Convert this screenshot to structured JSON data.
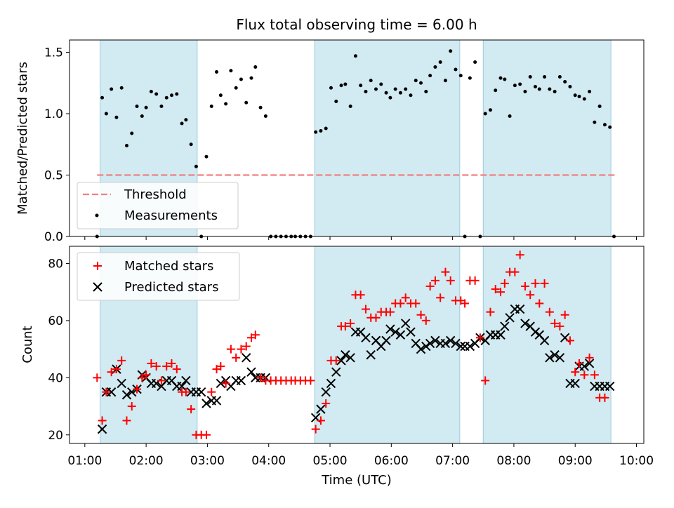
{
  "chart_data": [
    {
      "type": "scatter",
      "title": "Flux total observing time = 6.00 h",
      "xlabel": "",
      "ylabel": "Matched/Predicted stars",
      "ylim": [
        0,
        1.6
      ],
      "yticks": [
        "0.0",
        "0.5",
        "1.0",
        "1.5"
      ],
      "xlim_hours": [
        0.75,
        10.12
      ],
      "shaded_bands_utc": [
        [
          "01:15",
          "02:50"
        ],
        [
          "04:45",
          "07:07"
        ],
        [
          "07:30",
          "09:35"
        ]
      ],
      "band_color": "#add8e6",
      "legend": {
        "location": "lower-left",
        "entries": [
          "Threshold",
          "Measurements"
        ]
      },
      "series": [
        {
          "name": "Threshold",
          "kind": "dashed-line",
          "color": "#f08080",
          "x": [
            "01:12",
            "09:40"
          ],
          "y": [
            0.5,
            0.5
          ]
        },
        {
          "name": "Measurements",
          "kind": "points",
          "color": "#000000",
          "x": [
            "01:12",
            "01:17",
            "01:21",
            "01:26",
            "01:31",
            "01:36",
            "01:41",
            "01:46",
            "01:51",
            "01:56",
            "02:00",
            "02:05",
            "02:10",
            "02:15",
            "02:20",
            "02:25",
            "02:30",
            "02:35",
            "02:39",
            "02:44",
            "02:49",
            "02:54",
            "02:59",
            "03:04",
            "03:09",
            "03:13",
            "03:18",
            "03:23",
            "03:28",
            "03:33",
            "03:38",
            "03:43",
            "03:47",
            "03:52",
            "03:57",
            "04:02",
            "04:07",
            "04:12",
            "04:17",
            "04:22",
            "04:26",
            "04:31",
            "04:36",
            "04:41",
            "04:46",
            "04:51",
            "04:56",
            "05:01",
            "05:06",
            "05:11",
            "05:15",
            "05:20",
            "05:25",
            "05:30",
            "05:35",
            "05:40",
            "05:45",
            "05:50",
            "05:55",
            "05:59",
            "06:04",
            "06:09",
            "06:14",
            "06:19",
            "06:24",
            "06:29",
            "06:34",
            "06:38",
            "06:43",
            "06:48",
            "06:53",
            "06:58",
            "07:03",
            "07:08",
            "07:12",
            "07:17",
            "07:22",
            "07:27",
            "07:32",
            "07:37",
            "07:42",
            "07:47",
            "07:51",
            "07:56",
            "08:01",
            "08:06",
            "08:11",
            "08:16",
            "08:21",
            "08:25",
            "08:30",
            "08:35",
            "08:40",
            "08:45",
            "08:50",
            "08:55",
            "09:00",
            "09:04",
            "09:09",
            "09:14",
            "09:19",
            "09:24",
            "09:29",
            "09:34",
            "09:38"
          ],
          "y": [
            0.0,
            1.13,
            1.0,
            1.2,
            0.97,
            1.21,
            0.74,
            0.84,
            1.06,
            0.98,
            1.05,
            1.18,
            1.16,
            1.06,
            1.13,
            1.15,
            1.16,
            0.92,
            0.95,
            0.75,
            0.57,
            0.0,
            0.65,
            1.06,
            1.34,
            1.15,
            1.08,
            1.35,
            1.21,
            1.28,
            1.09,
            1.29,
            1.38,
            1.05,
            0.98,
            0.0,
            0.0,
            0.0,
            0.0,
            0.0,
            0.0,
            0.0,
            0.0,
            0.0,
            0.85,
            0.86,
            0.88,
            1.21,
            1.1,
            1.23,
            1.24,
            1.06,
            1.47,
            1.23,
            1.18,
            1.27,
            1.2,
            1.24,
            1.17,
            1.13,
            1.2,
            1.17,
            1.2,
            1.15,
            1.27,
            1.25,
            1.18,
            1.31,
            1.38,
            1.42,
            1.27,
            1.51,
            1.36,
            1.31,
            0.0,
            1.29,
            1.42,
            0.0,
            1.0,
            1.03,
            1.19,
            1.29,
            1.28,
            0.98,
            1.23,
            1.24,
            1.18,
            1.3,
            1.22,
            1.2,
            1.3,
            1.2,
            1.18,
            1.3,
            1.26,
            1.22,
            1.15,
            1.14,
            1.12,
            1.18,
            0.93,
            1.06,
            0.91,
            0.89,
            0.0
          ]
        }
      ]
    },
    {
      "type": "scatter",
      "title": "",
      "xlabel": "Time (UTC)",
      "ylabel": "Count",
      "ylim": [
        17,
        86
      ],
      "yticks": [
        "20",
        "40",
        "60",
        "80"
      ],
      "xticks": [
        "01:00",
        "02:00",
        "03:00",
        "04:00",
        "05:00",
        "06:00",
        "07:00",
        "08:00",
        "09:00",
        "10:00"
      ],
      "xlim_hours": [
        0.75,
        10.12
      ],
      "shaded_bands_utc": [
        [
          "01:15",
          "02:50"
        ],
        [
          "04:45",
          "07:07"
        ],
        [
          "07:30",
          "09:35"
        ]
      ],
      "legend": {
        "location": "top-left",
        "entries": [
          "Matched stars",
          "Predicted stars"
        ]
      },
      "series": [
        {
          "name": "Matched stars",
          "marker": "+",
          "color": "#ff0000",
          "x": [
            "01:12",
            "01:17",
            "01:21",
            "01:26",
            "01:31",
            "01:36",
            "01:41",
            "01:46",
            "01:51",
            "01:56",
            "02:00",
            "02:05",
            "02:10",
            "02:15",
            "02:20",
            "02:25",
            "02:30",
            "02:35",
            "02:39",
            "02:44",
            "02:49",
            "02:54",
            "02:59",
            "03:04",
            "03:09",
            "03:13",
            "03:18",
            "03:23",
            "03:28",
            "03:33",
            "03:38",
            "03:43",
            "03:47",
            "03:52",
            "03:57",
            "04:02",
            "04:07",
            "04:12",
            "04:17",
            "04:22",
            "04:26",
            "04:31",
            "04:36",
            "04:41",
            "04:46",
            "04:51",
            "04:56",
            "05:01",
            "05:06",
            "05:11",
            "05:15",
            "05:20",
            "05:25",
            "05:30",
            "05:35",
            "05:40",
            "05:45",
            "05:50",
            "05:55",
            "05:59",
            "06:04",
            "06:09",
            "06:14",
            "06:19",
            "06:24",
            "06:29",
            "06:34",
            "06:38",
            "06:43",
            "06:48",
            "06:53",
            "06:58",
            "07:03",
            "07:08",
            "07:12",
            "07:17",
            "07:22",
            "07:27",
            "07:32",
            "07:37",
            "07:42",
            "07:47",
            "07:51",
            "07:56",
            "08:01",
            "08:06",
            "08:11",
            "08:16",
            "08:21",
            "08:25",
            "08:30",
            "08:35",
            "08:40",
            "08:45",
            "08:50",
            "08:55",
            "09:00",
            "09:04",
            "09:09",
            "09:14",
            "09:19",
            "09:24",
            "09:29",
            "09:34",
            "09:38"
          ],
          "y": [
            40,
            25,
            35,
            42,
            43,
            46,
            25,
            30,
            36,
            40,
            41,
            45,
            44,
            39,
            44,
            45,
            43,
            35,
            35,
            29,
            20,
            20,
            20,
            35,
            43,
            44,
            38,
            50,
            47,
            50,
            51,
            54,
            55,
            40,
            39,
            39,
            39,
            39,
            39,
            39,
            39,
            39,
            39,
            39,
            22,
            25,
            31,
            46,
            46,
            58,
            58,
            59,
            69,
            69,
            64,
            61,
            61,
            63,
            63,
            63,
            66,
            66,
            68,
            66,
            66,
            62,
            60,
            72,
            74,
            68,
            77,
            74,
            67,
            67,
            66,
            74,
            74,
            54,
            39,
            63,
            71,
            70,
            73,
            77,
            77,
            83,
            72,
            69,
            73,
            66,
            73,
            63,
            59,
            58,
            62,
            53,
            42,
            45,
            41,
            47,
            41,
            33,
            33,
            null,
            null
          ]
        },
        {
          "name": "Predicted stars",
          "marker": "x",
          "color": "#000000",
          "x": [
            "01:17",
            "01:21",
            "01:26",
            "01:31",
            "01:36",
            "01:41",
            "01:46",
            "01:51",
            "01:56",
            "02:00",
            "02:05",
            "02:10",
            "02:15",
            "02:20",
            "02:25",
            "02:30",
            "02:35",
            "02:39",
            "02:44",
            "02:49",
            "02:54",
            "02:59",
            "03:04",
            "03:09",
            "03:13",
            "03:18",
            "03:23",
            "03:28",
            "03:33",
            "03:38",
            "03:43",
            "03:47",
            "03:52",
            "03:57",
            "04:46",
            "04:51",
            "04:56",
            "05:01",
            "05:06",
            "05:11",
            "05:15",
            "05:20",
            "05:25",
            "05:30",
            "05:35",
            "05:40",
            "05:45",
            "05:50",
            "05:55",
            "05:59",
            "06:04",
            "06:09",
            "06:14",
            "06:19",
            "06:24",
            "06:29",
            "06:34",
            "06:38",
            "06:43",
            "06:48",
            "06:53",
            "06:58",
            "07:03",
            "07:08",
            "07:12",
            "07:17",
            "07:22",
            "07:27",
            "07:32",
            "07:37",
            "07:42",
            "07:47",
            "07:51",
            "07:56",
            "08:01",
            "08:06",
            "08:11",
            "08:16",
            "08:21",
            "08:25",
            "08:30",
            "08:35",
            "08:40",
            "08:45",
            "08:50",
            "08:55",
            "09:00",
            "09:04",
            "09:09",
            "09:14",
            "09:19",
            "09:24",
            "09:29",
            "09:34"
          ],
          "y": [
            22,
            35,
            35,
            43,
            38,
            34,
            35,
            36,
            41,
            40,
            38,
            38,
            37,
            39,
            39,
            37,
            37,
            39,
            35,
            35,
            35,
            31,
            32,
            32,
            38,
            39,
            37,
            39,
            39,
            47,
            42,
            40,
            40,
            40,
            26,
            29,
            35,
            38,
            42,
            46,
            48,
            47,
            56,
            56,
            54,
            48,
            53,
            51,
            53,
            57,
            56,
            55,
            59,
            56,
            52,
            50,
            51,
            52,
            53,
            52,
            52,
            53,
            52,
            51,
            51,
            51,
            52,
            54,
            53,
            55,
            55,
            55,
            58,
            61,
            64,
            64,
            59,
            58,
            56,
            55,
            53,
            47,
            48,
            47,
            54,
            38,
            38,
            44,
            44,
            45,
            37,
            37,
            37,
            37
          ]
        }
      ]
    }
  ]
}
